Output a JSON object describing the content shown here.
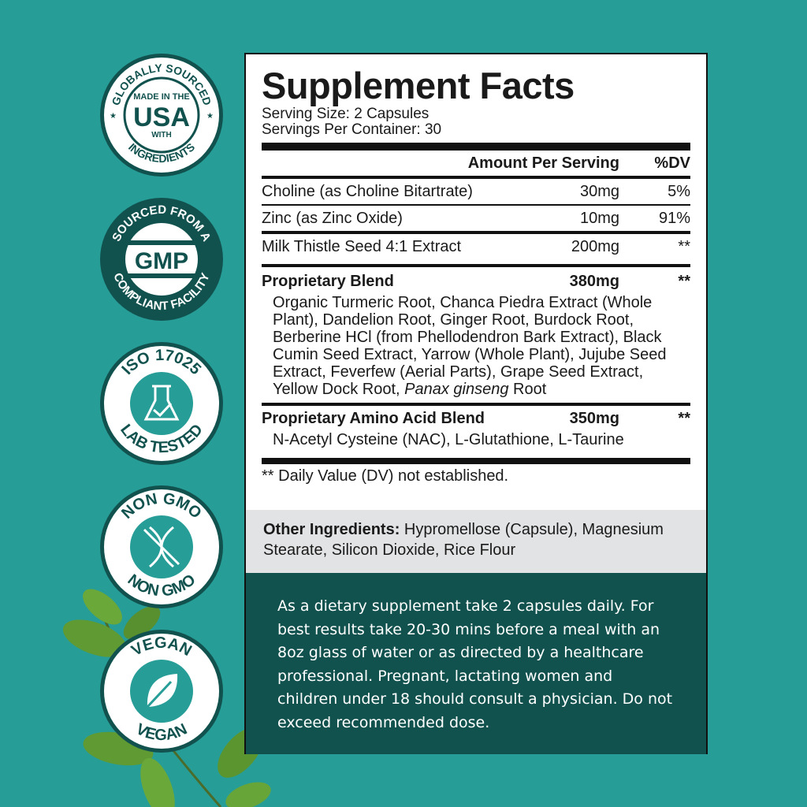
{
  "badges": [
    {
      "top": "GLOBALLY SOURCED",
      "bottom": "INGREDIENTS",
      "line1": "MADE IN THE",
      "main": "USA",
      "line2": "WITH"
    },
    {
      "top": "SOURCED FROM A",
      "bottom": "COMPLIANT FACILITY",
      "main": "GMP"
    },
    {
      "top": "ISO 17025",
      "bottom": "LAB TESTED",
      "icon": "flask-check-icon"
    },
    {
      "top": "NON GMO",
      "bottom": "NON GMO",
      "icon": "dna-crossed-icon"
    },
    {
      "top": "VEGAN",
      "bottom": "VEGAN",
      "icon": "leaf-icon"
    }
  ],
  "colors": {
    "background": "#279d97",
    "dark_teal": "#11524f",
    "gray": "#e2e3e4"
  },
  "facts": {
    "title": "Supplement Facts",
    "serving_size": "Serving Size: 2 Capsules",
    "servings_per_container": "Servings Per Container: 30",
    "header_amount": "Amount Per Serving",
    "header_dv": "%DV",
    "rows": [
      {
        "name": "Choline (as Choline Bitartrate)",
        "amount": "30mg",
        "dv": "5%"
      },
      {
        "name": "Zinc (as Zinc Oxide)",
        "amount": "10mg",
        "dv": "91%"
      },
      {
        "name": "Milk Thistle Seed 4:1 Extract",
        "amount": "200mg",
        "dv": "**"
      }
    ],
    "blend1": {
      "name": "Proprietary Blend",
      "amount": "380mg",
      "dv": "**",
      "ingredients": "Organic Turmeric Root, Chanca Piedra Extract (Whole Plant), Dandelion Root, Ginger Root, Burdock Root, Berberine HCl (from Phellodendron Bark Extract), Black Cumin Seed Extract, Yarrow (Whole Plant), Jujube Seed Extract, Feverfew (Aerial Parts), Grape Seed Extract, Yellow Dock Root,",
      "italic": "Panax ginseng",
      "tail": " Root"
    },
    "blend2": {
      "name": "Proprietary Amino Acid Blend",
      "amount": "350mg",
      "dv": "**",
      "ingredients": "N-Acetyl Cysteine (NAC), L-Glutathione, L-Taurine"
    },
    "footnote": "** Daily Value (DV) not established."
  },
  "other": {
    "label": "Other Ingredients:",
    "text": " Hypromellose (Capsule), Magnesium Stearate, Silicon Dioxide, Rice Flour"
  },
  "directions": "As a dietary supplement take 2 capsules daily. For best results take 20-30 mins before a meal with an 8oz glass of water or as directed by a healthcare professional. Pregnant, lactating women and children under 18 should consult a physician. Do not exceed recommended dose."
}
